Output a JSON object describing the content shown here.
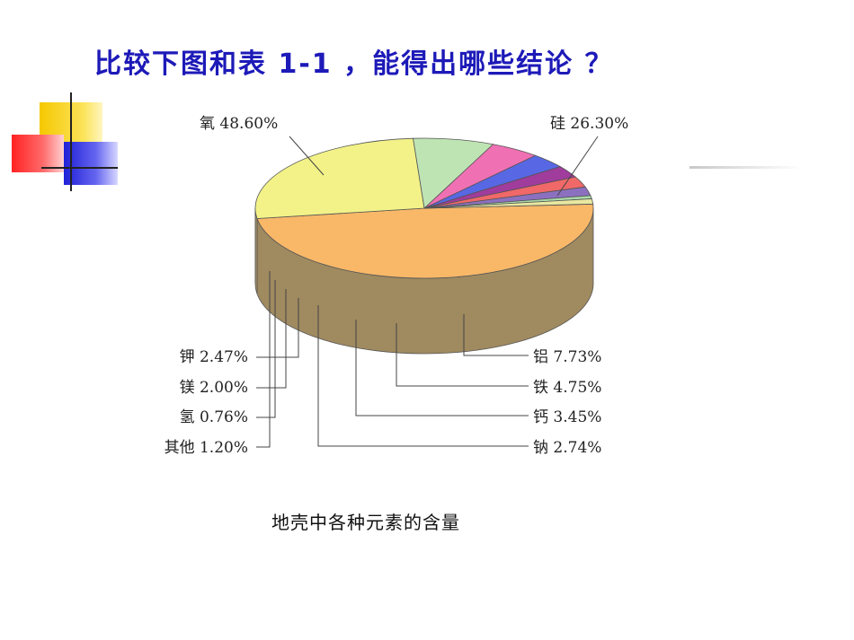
{
  "slide": {
    "title": "比较下图和表 1-1 ，能得出哪些结论 ？"
  },
  "chart_data": {
    "type": "pie",
    "caption": "地壳中各种元素的含量",
    "slices": [
      {
        "label": "氧",
        "value": 48.6,
        "display": "48.60%",
        "color": "#f8b868",
        "side": "#a08a60"
      },
      {
        "label": "硅",
        "value": 26.3,
        "display": "26.30%",
        "color": "#f2f288",
        "side": "#b09868"
      },
      {
        "label": "铝",
        "value": 7.73,
        "display": "7.73%",
        "color": "#bfe4b4",
        "side": "#b09c80"
      },
      {
        "label": "铁",
        "value": 4.75,
        "display": "4.75%",
        "color": "#f070b4",
        "side": "#c05878"
      },
      {
        "label": "钙",
        "value": 3.45,
        "display": "3.45%",
        "color": "#5868e4",
        "side": "#4858b0"
      },
      {
        "label": "钠",
        "value": 2.74,
        "display": "2.74%",
        "color": "#a03c9c",
        "side": "#8a3070"
      },
      {
        "label": "钾",
        "value": 2.47,
        "display": "2.47%",
        "color": "#f06868",
        "side": "#c05050"
      },
      {
        "label": "镁",
        "value": 2.0,
        "display": "2.00%",
        "color": "#8c70c0",
        "side": "#7060a0"
      },
      {
        "label": "氢",
        "value": 0.76,
        "display": "0.76%",
        "color": "#a8d8a8",
        "side": "#88a888"
      },
      {
        "label": "其他",
        "value": 1.2,
        "display": "1.20%",
        "color": "#e8e8a0",
        "side": "#b8b070"
      }
    ]
  }
}
